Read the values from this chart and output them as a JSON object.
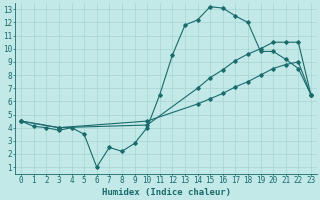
{
  "xlabel": "Humidex (Indice chaleur)",
  "bg_color": "#c2e8e8",
  "line_color": "#1a6b6b",
  "grid_color": "#a8d4d4",
  "xlim": [
    -0.5,
    23.5
  ],
  "ylim": [
    0.5,
    13.5
  ],
  "xticks": [
    0,
    1,
    2,
    3,
    4,
    5,
    6,
    7,
    8,
    9,
    10,
    11,
    12,
    13,
    14,
    15,
    16,
    17,
    18,
    19,
    20,
    21,
    22,
    23
  ],
  "yticks": [
    1,
    2,
    3,
    4,
    5,
    6,
    7,
    8,
    9,
    10,
    11,
    12,
    13
  ],
  "line1_x": [
    0,
    1,
    2,
    3,
    4,
    5,
    6,
    7,
    8,
    9,
    10,
    11,
    12,
    13,
    14,
    15,
    16,
    17,
    18,
    19,
    20,
    21,
    22,
    23
  ],
  "line1_y": [
    4.5,
    4.1,
    4.0,
    3.8,
    4.0,
    3.5,
    1.0,
    2.5,
    2.2,
    2.8,
    4.0,
    6.5,
    9.5,
    11.8,
    12.2,
    13.2,
    13.1,
    12.5,
    12.0,
    9.8,
    9.8,
    9.2,
    8.5,
    6.5
  ],
  "line2_x": [
    0,
    3,
    10,
    14,
    15,
    16,
    17,
    18,
    19,
    20,
    21,
    22,
    23
  ],
  "line2_y": [
    4.5,
    4.0,
    4.2,
    7.0,
    7.8,
    8.4,
    9.1,
    9.6,
    10.0,
    10.5,
    10.5,
    10.5,
    6.5
  ],
  "line3_x": [
    0,
    3,
    10,
    14,
    15,
    16,
    17,
    18,
    19,
    20,
    21,
    22,
    23
  ],
  "line3_y": [
    4.5,
    4.0,
    4.5,
    5.8,
    6.2,
    6.6,
    7.1,
    7.5,
    8.0,
    8.5,
    8.8,
    9.0,
    6.5
  ]
}
